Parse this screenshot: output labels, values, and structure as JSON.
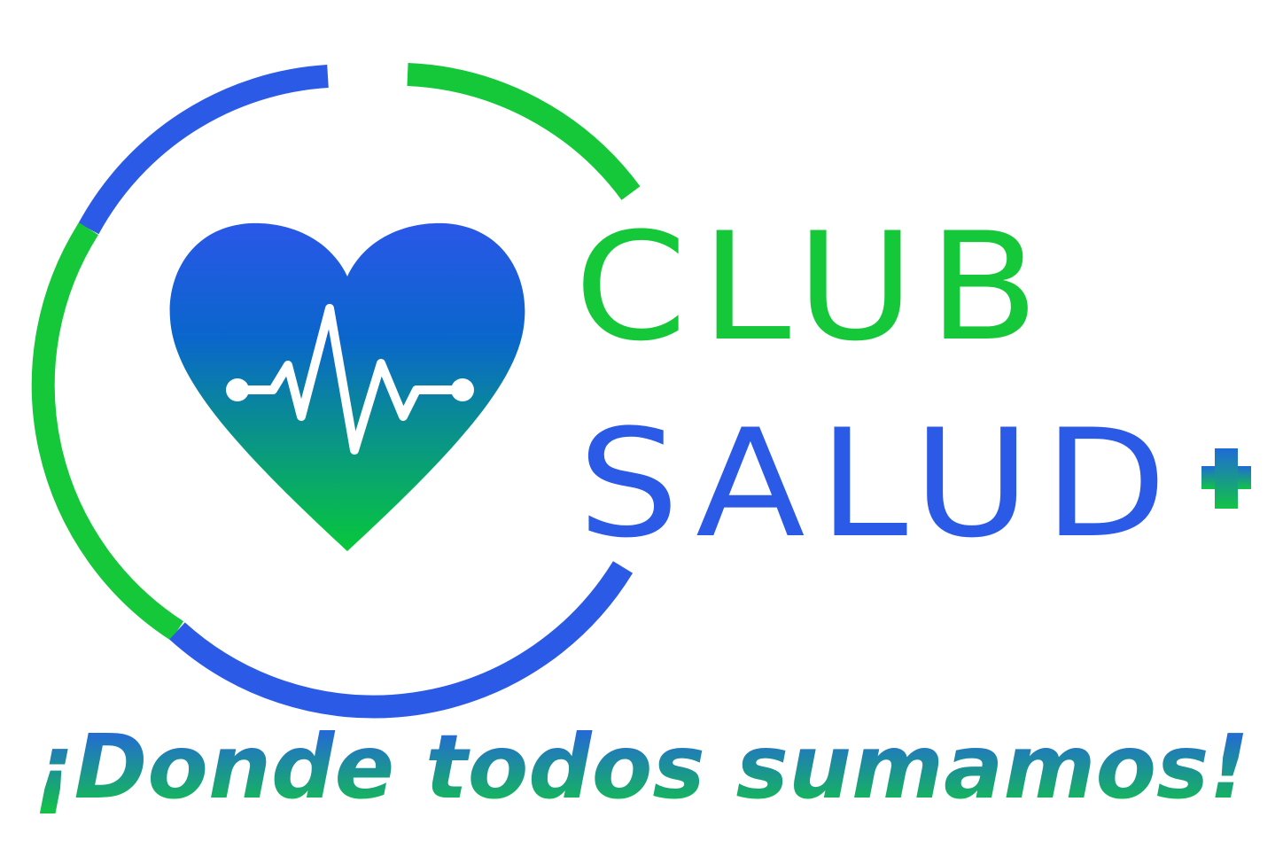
{
  "brand": {
    "line1": "CLUB",
    "line2": "SALUD",
    "plus": "+",
    "tagline": "¡Donde todos sumamos!"
  },
  "colors": {
    "blue": "#2b5be6",
    "green": "#14c83a",
    "heart_top": "#2a57e8",
    "heart_mid": "#0a66cc",
    "heart_bottom": "#08c83a",
    "tagline_top": "#2563e0",
    "tagline_bottom": "#12c346"
  },
  "icons": {
    "heart": "heart-pulse-icon",
    "ring": "circular-ring"
  }
}
